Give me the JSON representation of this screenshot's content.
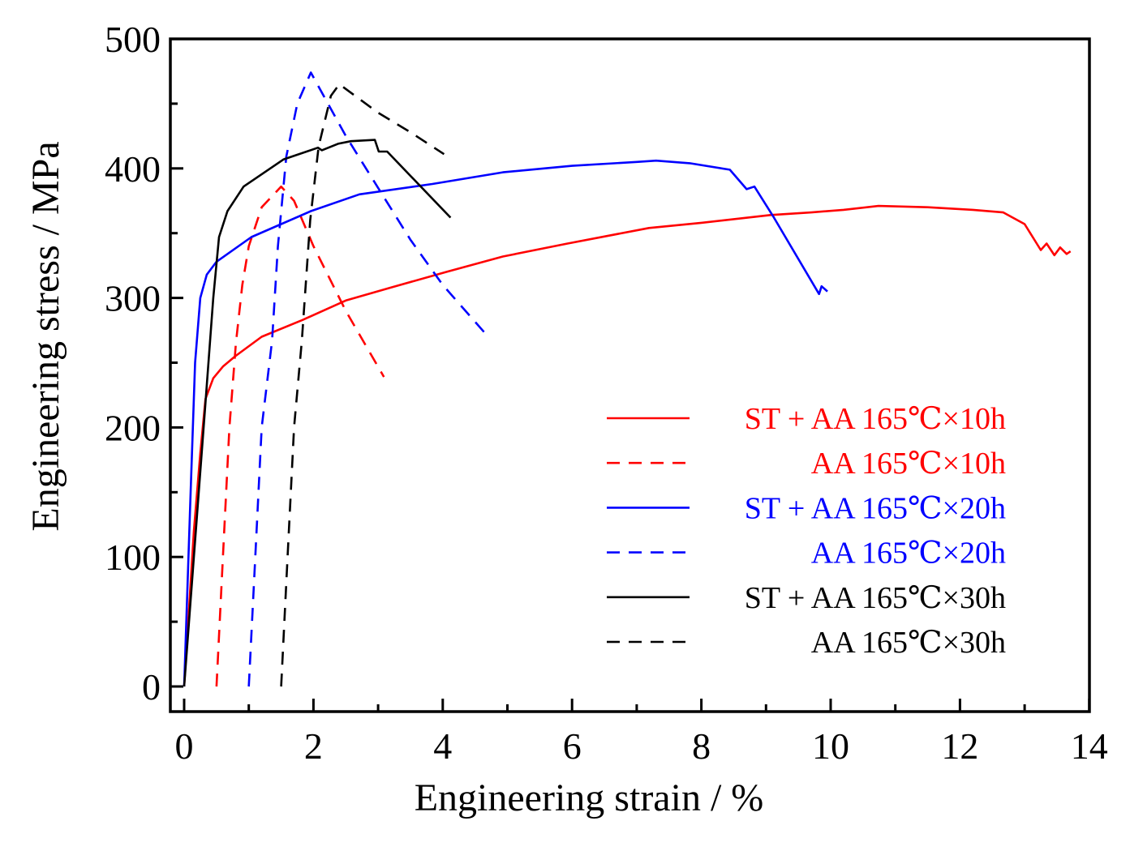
{
  "chart_data": {
    "type": "line",
    "title": "",
    "xlabel": "Engineering strain / %",
    "ylabel": "Engineering stress / MPa",
    "xlim": [
      -0.2,
      14
    ],
    "ylim": [
      -20,
      500
    ],
    "xticks": [
      0,
      2,
      4,
      6,
      8,
      10,
      12,
      14
    ],
    "yticks": [
      0,
      100,
      200,
      300,
      400,
      500
    ],
    "grid": false,
    "legend_position": "bottom-right",
    "series": [
      {
        "name": "ST + AA 165℃×10h",
        "color": "#ff0000",
        "dashed": false,
        "points": [
          [
            0,
            0
          ],
          [
            0.15,
            120
          ],
          [
            0.25,
            180
          ],
          [
            0.33,
            222
          ],
          [
            0.45,
            238
          ],
          [
            0.6,
            247
          ],
          [
            0.79,
            255
          ],
          [
            1.2,
            270
          ],
          [
            1.83,
            283
          ],
          [
            2.5,
            298
          ],
          [
            3.2,
            308
          ],
          [
            4.05,
            320
          ],
          [
            4.93,
            332
          ],
          [
            5.93,
            342
          ],
          [
            7.19,
            354
          ],
          [
            8,
            358
          ],
          [
            9.07,
            364
          ],
          [
            9.7,
            366
          ],
          [
            10.2,
            368
          ],
          [
            10.74,
            371
          ],
          [
            11.5,
            370
          ],
          [
            12.2,
            368
          ],
          [
            12.67,
            366
          ],
          [
            13.0,
            357
          ],
          [
            13.25,
            337
          ],
          [
            13.34,
            342
          ],
          [
            13.46,
            333
          ],
          [
            13.55,
            339
          ],
          [
            13.65,
            334
          ],
          [
            13.71,
            336
          ]
        ]
      },
      {
        "name": "AA 165℃×10h",
        "color": "#ff0000",
        "dashed": true,
        "points": [
          [
            0.5,
            0
          ],
          [
            0.6,
            100
          ],
          [
            0.7,
            200
          ],
          [
            0.8,
            265
          ],
          [
            0.9,
            310
          ],
          [
            1.0,
            340
          ],
          [
            1.2,
            370
          ],
          [
            1.5,
            386
          ],
          [
            1.7,
            375
          ],
          [
            2.0,
            340
          ],
          [
            2.5,
            290
          ],
          [
            3.09,
            239
          ]
        ]
      },
      {
        "name": "ST + AA 165℃×20h",
        "color": "#0000ff",
        "dashed": false,
        "points": [
          [
            0,
            0
          ],
          [
            0.1,
            150
          ],
          [
            0.17,
            250
          ],
          [
            0.25,
            300
          ],
          [
            0.35,
            318
          ],
          [
            0.5,
            328
          ],
          [
            1.04,
            347
          ],
          [
            1.96,
            367
          ],
          [
            2.71,
            380
          ],
          [
            3.84,
            388
          ],
          [
            4.93,
            397
          ],
          [
            6,
            402
          ],
          [
            7,
            405
          ],
          [
            7.3,
            406
          ],
          [
            7.82,
            404
          ],
          [
            8.44,
            399
          ],
          [
            8.7,
            384
          ],
          [
            8.82,
            386
          ],
          [
            9.11,
            363
          ],
          [
            9.82,
            303
          ],
          [
            9.86,
            309
          ],
          [
            9.95,
            305
          ]
        ]
      },
      {
        "name": "AA 165℃×20h",
        "color": "#0000ff",
        "dashed": true,
        "points": [
          [
            1.0,
            0
          ],
          [
            1.1,
            100
          ],
          [
            1.2,
            200
          ],
          [
            1.36,
            267
          ],
          [
            1.45,
            340
          ],
          [
            1.58,
            409
          ],
          [
            1.75,
            450
          ],
          [
            1.96,
            474
          ],
          [
            2.5,
            425
          ],
          [
            3.0,
            385
          ],
          [
            3.5,
            345
          ],
          [
            4.0,
            310
          ],
          [
            4.65,
            273
          ]
        ]
      },
      {
        "name": "ST + AA 165℃×30h",
        "color": "#000000",
        "dashed": false,
        "points": [
          [
            0,
            0
          ],
          [
            0.15,
            100
          ],
          [
            0.33,
            219
          ],
          [
            0.45,
            300
          ],
          [
            0.54,
            347
          ],
          [
            0.67,
            367
          ],
          [
            0.92,
            386
          ],
          [
            1.54,
            407
          ],
          [
            2.07,
            416
          ],
          [
            2.13,
            414
          ],
          [
            2.38,
            419
          ],
          [
            2.58,
            421
          ],
          [
            2.95,
            422
          ],
          [
            3.01,
            413
          ],
          [
            3.14,
            413
          ],
          [
            4.12,
            362
          ]
        ]
      },
      {
        "name": "AA 165℃×30h",
        "color": "#000000",
        "dashed": true,
        "points": [
          [
            1.5,
            0
          ],
          [
            1.6,
            100
          ],
          [
            1.7,
            200
          ],
          [
            1.82,
            267
          ],
          [
            1.95,
            360
          ],
          [
            2.08,
            417
          ],
          [
            2.27,
            456
          ],
          [
            2.4,
            465
          ],
          [
            3.0,
            443
          ],
          [
            3.5,
            428
          ],
          [
            4.02,
            411
          ]
        ]
      }
    ]
  }
}
